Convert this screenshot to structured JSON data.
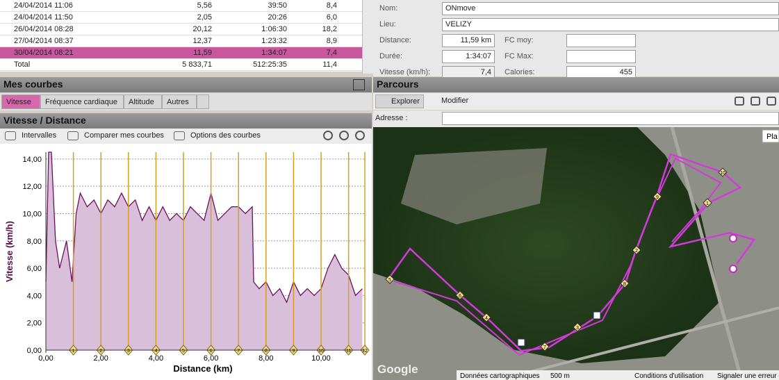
{
  "activities": {
    "rows": [
      [
        "24/04/2014 11:06",
        "5,56",
        "39:50",
        "8,4"
      ],
      [
        "24/04/2014 11:50",
        "2,05",
        "20:26",
        "6,0"
      ],
      [
        "26/04/2014 08:28",
        "20,12",
        "1:06:30",
        "18,2"
      ],
      [
        "27/04/2014 08:37",
        "12,37",
        "1:23:32",
        "8,9"
      ],
      [
        "30/04/2014 08:21",
        "11,59",
        "1:34:07",
        "7,4"
      ]
    ],
    "selected_row": 4,
    "total": [
      "Total",
      "5 833,71",
      "512:25:35",
      "11,4"
    ]
  },
  "details": {
    "fields": [
      {
        "label": "Nom:",
        "value": "ONmove"
      },
      {
        "label": "Lieu:",
        "value": "VELIZY"
      },
      {
        "label": "Distance:",
        "value": "11,59 km"
      },
      {
        "label": "FC moy:"
      },
      {
        "label": "Durée:",
        "value": "1:34:07"
      },
      {
        "label": "FC Max:"
      },
      {
        "label": "Vitesse (km/h):",
        "value": "7,4"
      },
      {
        "label": "Calories:",
        "value": "455"
      }
    ]
  },
  "curves_panel": {
    "title": "Mes courbes",
    "tabs": [
      "Vitesse",
      "Fréquence cardiaque",
      "Altitude",
      "Autres"
    ],
    "active_tab": 0
  },
  "chart_panel": {
    "title": "Vitesse / Distance",
    "tools": [
      "Intervalles",
      "Comparer mes courbes",
      "Options des courbes"
    ]
  },
  "chart_data": {
    "type": "area",
    "x_label": "Distance (km)",
    "y_label": "Vitesse (km/h)",
    "series": [
      {
        "name": "Vitesse",
        "color": "#6b0f5e",
        "fill": "#d9bfd9",
        "x": [
          0.0,
          0.1,
          0.2,
          0.35,
          0.5,
          0.75,
          0.95,
          1.1,
          1.25,
          1.5,
          1.75,
          2.0,
          2.25,
          2.5,
          2.75,
          3.0,
          3.25,
          3.5,
          3.75,
          4.0,
          4.25,
          4.5,
          4.75,
          5.0,
          5.25,
          5.5,
          5.75,
          6.0,
          6.25,
          6.5,
          6.75,
          7.0,
          7.25,
          7.5,
          7.55,
          7.75,
          8.0,
          8.25,
          8.5,
          8.75,
          9.0,
          9.25,
          9.5,
          9.75,
          10.0,
          10.25,
          10.5,
          10.75,
          11.0,
          11.25,
          11.5
        ],
        "values": [
          5.0,
          14.5,
          14.5,
          8.0,
          6.0,
          8.0,
          5.0,
          10.0,
          11.5,
          10.5,
          11.0,
          10.0,
          11.0,
          10.5,
          11.5,
          10.5,
          11.0,
          9.5,
          10.5,
          9.5,
          10.5,
          9.5,
          10.0,
          9.5,
          10.5,
          10.0,
          9.5,
          11.5,
          9.5,
          10.0,
          10.5,
          10.5,
          10.0,
          10.5,
          5.0,
          4.5,
          5.0,
          4.0,
          4.5,
          3.5,
          5.0,
          4.0,
          4.5,
          4.0,
          4.5,
          6.0,
          7.0,
          6.0,
          5.5,
          4.0,
          4.5
        ]
      }
    ],
    "laps": {
      "numbers": [
        1,
        2,
        3,
        4,
        5,
        6,
        7,
        8,
        9,
        10,
        11,
        12
      ],
      "x": [
        1,
        2,
        3,
        4,
        5,
        6,
        7,
        8,
        9,
        10,
        11,
        11.59
      ],
      "color": "#d4a020"
    },
    "xlim": [
      0,
      11.59
    ],
    "ylim": [
      0,
      14.5
    ],
    "xticks": [
      {
        "value": 0,
        "label": "0,00"
      },
      {
        "value": 2,
        "label": "2,00"
      },
      {
        "value": 4,
        "label": "4,00"
      },
      {
        "value": 6,
        "label": "6,00"
      },
      {
        "value": 8,
        "label": "8,00"
      },
      {
        "value": 10,
        "label": "10,00"
      }
    ],
    "yticks": [
      {
        "value": 0,
        "label": "0,00"
      },
      {
        "value": 2,
        "label": "2,00"
      },
      {
        "value": 4,
        "label": "4,00"
      },
      {
        "value": 6,
        "label": "6,00"
      },
      {
        "value": 8,
        "label": "8,00"
      },
      {
        "value": 10,
        "label": "10,00"
      },
      {
        "value": 12,
        "label": "12,00"
      },
      {
        "value": 14,
        "label": "14,00"
      }
    ],
    "grid": true
  },
  "route_panel": {
    "title": "Parcours",
    "tools": [
      "Explorer",
      "Modifier"
    ],
    "address_label": "Adresse :",
    "map": {
      "markers": [
        1,
        2,
        3,
        4,
        5,
        6,
        7,
        8,
        9,
        10
      ],
      "logo": "Google",
      "button": "Pla",
      "credits": [
        "Données cartographiques",
        "500 m",
        "Conditions d'utilisation",
        "Signaler une erreur c"
      ]
    }
  }
}
